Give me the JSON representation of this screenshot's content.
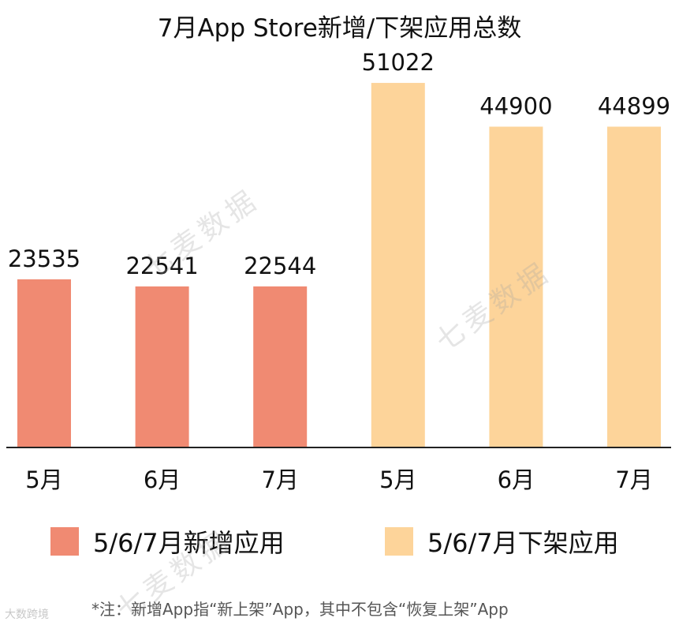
{
  "chart_data": {
    "type": "bar",
    "title": "7月App Store新增/下架应用总数",
    "categories": [
      "5月",
      "6月",
      "7月",
      "5月",
      "6月",
      "7月"
    ],
    "series": [
      {
        "name": "5/6/7月新增应用",
        "color": "#f08a72",
        "values": [
          23535,
          22541,
          22544,
          null,
          null,
          null
        ]
      },
      {
        "name": "5/6/7月下架应用",
        "color": "#fdd49a",
        "values": [
          null,
          null,
          null,
          51022,
          44900,
          44899
        ]
      }
    ],
    "ylim": [
      0,
      56000
    ],
    "grid": false,
    "legend": "bottom",
    "footnote": "*注：新增App指“新上架”App，其中不包含“恢复上架”App",
    "watermark": "七麦数据",
    "corner_mark": "大数跨境"
  }
}
